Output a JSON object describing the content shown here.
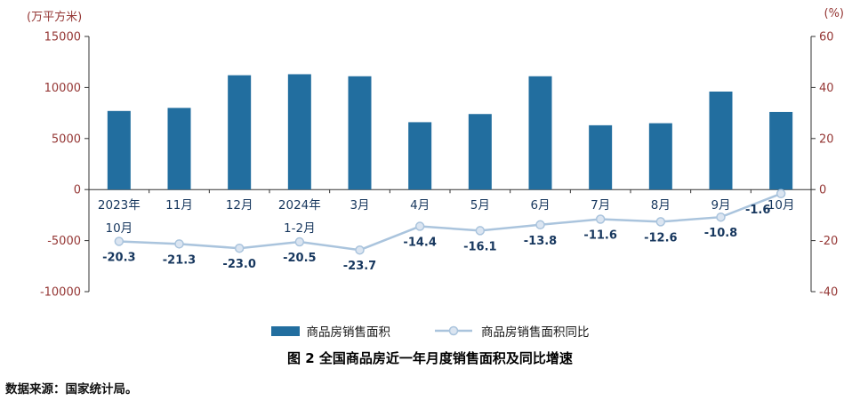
{
  "chart_data": {
    "type": "combo",
    "categories": [
      "2023年\n10月",
      "11月",
      "12月",
      "2024年\n1-2月",
      "3月",
      "4月",
      "5月",
      "6月",
      "7月",
      "8月",
      "9月",
      "10月"
    ],
    "series": [
      {
        "name": "商品房销售面积",
        "type": "bar",
        "axis": "left",
        "color": "#226e9f",
        "values": [
          7700,
          8000,
          11200,
          11300,
          11100,
          6600,
          7400,
          11100,
          6300,
          6500,
          9600,
          7600
        ]
      },
      {
        "name": "商品房销售面积同比",
        "type": "line",
        "axis": "right",
        "color": "#aac4dd",
        "marker_fill": "#dbe5f1",
        "values": [
          -20.3,
          -21.3,
          -23.0,
          -20.5,
          -23.7,
          -14.4,
          -16.1,
          -13.8,
          -11.6,
          -12.6,
          -10.8,
          -1.6
        ],
        "show_labels": true
      }
    ],
    "left_axis": {
      "unit": "(万平方米)",
      "min": -10000,
      "max": 15000,
      "ticks": [
        15000,
        10000,
        5000,
        0,
        -5000,
        -10000
      ]
    },
    "right_axis": {
      "unit": "(%)",
      "min": -40,
      "max": 60,
      "ticks": [
        60,
        40,
        20,
        0,
        -20,
        -40
      ]
    },
    "grid": false,
    "legend_position": "bottom",
    "title": "图 2 全国商品房近一年月度销售面积及同比增速",
    "source": "数据来源：国家统计局。",
    "colors": {
      "tick_label": "#953735",
      "category_label": "#17375e",
      "value_label": "#17375e",
      "axis": "#333333"
    }
  }
}
